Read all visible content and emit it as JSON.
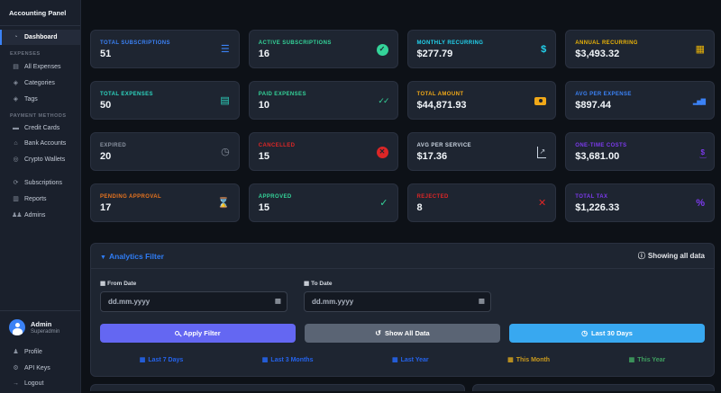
{
  "sidebar": {
    "title": "Accounting Panel",
    "dashboard_label": "Dashboard",
    "expenses_header": "EXPENSES",
    "expenses_items": [
      "All Expenses",
      "Categories",
      "Tags"
    ],
    "payments_header": "PAYMENT METHODS",
    "payments_items": [
      "Credit Cards",
      "Bank Accounts",
      "Crypto Wallets"
    ],
    "other_items": [
      "Subscriptions",
      "Reports",
      "Admins"
    ],
    "user": {
      "name": "Admin",
      "role": "Superadmin"
    },
    "account_items": [
      "Profile",
      "API Keys",
      "Logout"
    ]
  },
  "stats": [
    {
      "label": "TOTAL SUBSCRIPTIONS",
      "value": "51",
      "icon": "list-icon",
      "color": "#3b82f6"
    },
    {
      "label": "ACTIVE SUBSCRIPTIONS",
      "value": "16",
      "icon": "check-circle-icon",
      "color": "#34d399"
    },
    {
      "label": "MONTHLY RECURRING",
      "value": "$277.79",
      "icon": "dollar-icon",
      "color": "#22d3ee"
    },
    {
      "label": "ANNUAL RECURRING",
      "value": "$3,493.32",
      "icon": "calendar-icon",
      "color": "#eab308"
    },
    {
      "label": "TOTAL EXPENSES",
      "value": "50",
      "icon": "receipt-icon",
      "color": "#2dd4bf"
    },
    {
      "label": "PAID EXPENSES",
      "value": "10",
      "icon": "double-check-icon",
      "color": "#34d399"
    },
    {
      "label": "TOTAL AMOUNT",
      "value": "$44,871.93",
      "icon": "money-bill-icon",
      "color": "#f0a818"
    },
    {
      "label": "AVG PER EXPENSE",
      "value": "$897.44",
      "icon": "bar-chart-icon",
      "color": "#3b82f6"
    },
    {
      "label": "EXPIRED",
      "value": "20",
      "icon": "clock-icon",
      "color": "#8b93a1"
    },
    {
      "label": "CANCELLED",
      "value": "15",
      "icon": "circle-x-icon",
      "color": "#dc2626"
    },
    {
      "label": "AVG PER SERVICE",
      "value": "$17.36",
      "icon": "line-chart-icon",
      "color": "#cbd5e1"
    },
    {
      "label": "ONE-TIME COSTS",
      "value": "$3,681.00",
      "icon": "hand-dollar-icon",
      "color": "#7c3aed"
    },
    {
      "label": "PENDING APPROVAL",
      "value": "17",
      "icon": "hourglass-icon",
      "color": "#e8741e"
    },
    {
      "label": "APPROVED",
      "value": "15",
      "icon": "check-icon",
      "color": "#34d399"
    },
    {
      "label": "REJECTED",
      "value": "8",
      "icon": "x-icon",
      "color": "#dc2626"
    },
    {
      "label": "TOTAL TAX",
      "value": "$1,226.33",
      "icon": "percent-icon",
      "color": "#7c3aed"
    }
  ],
  "filter": {
    "title": "Analytics Filter",
    "status": "Showing all data",
    "from_label": "From Date",
    "to_label": "To Date",
    "date_placeholder": "dd.mm.yyyy",
    "buttons": [
      {
        "label": "Apply Filter",
        "icon": "search-icon",
        "color": "#6467f2"
      },
      {
        "label": "Show All Data",
        "icon": "undo-icon",
        "color": "#5a6474"
      },
      {
        "label": "Last 30 Days",
        "icon": "clock-icon",
        "color": "#38a8f0"
      }
    ],
    "quick_links": [
      {
        "label": "Last 7 Days",
        "color": "#2563eb"
      },
      {
        "label": "Last 3 Months",
        "color": "#2563eb"
      },
      {
        "label": "Last Year",
        "color": "#2563eb"
      },
      {
        "label": "This Month",
        "color": "#c99a1e"
      },
      {
        "label": "This Year",
        "color": "#3f9e5f"
      }
    ]
  },
  "colors": {
    "page_bg": "#0d1117",
    "sidebar_bg": "#1a202c",
    "card_bg": "#1e2531",
    "card_border": "#2a3140",
    "active_accent": "#3b82f6"
  }
}
